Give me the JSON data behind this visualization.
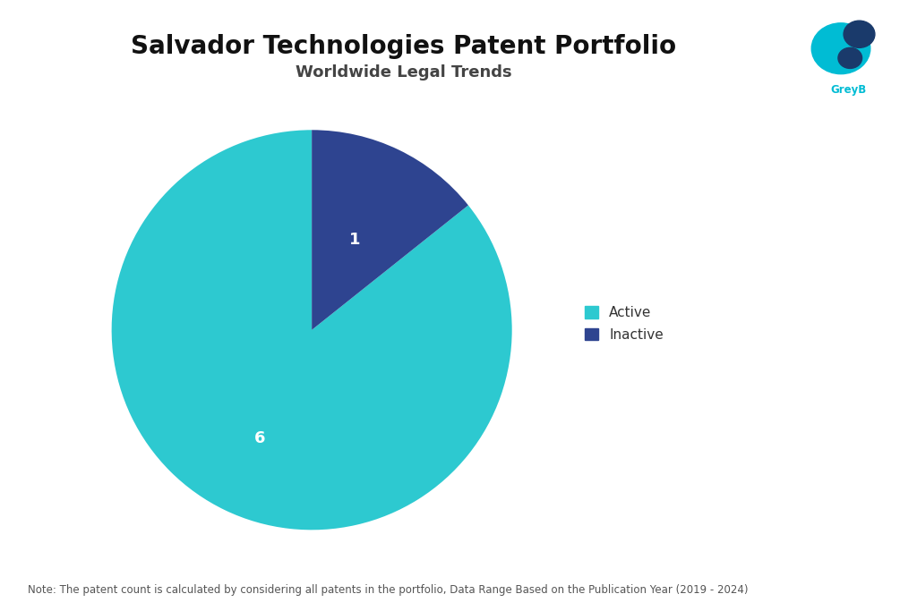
{
  "title": "Salvador Technologies Patent Portfolio",
  "subtitle": "Worldwide Legal Trends",
  "values": [
    6,
    1
  ],
  "labels": [
    "Active",
    "Inactive"
  ],
  "colors": [
    "#2DC9D0",
    "#2E4490"
  ],
  "autopct_values": [
    "6",
    "1"
  ],
  "legend_labels": [
    "Active",
    "Inactive"
  ],
  "note": "Note: The patent count is calculated by considering all patents in the portfolio, Data Range Based on the Publication Year (2019 - 2024)",
  "background_color": "#ffffff",
  "title_fontsize": 20,
  "subtitle_fontsize": 13,
  "note_fontsize": 8.5,
  "legend_fontsize": 11,
  "autopct_fontsize": 13,
  "startangle": 90
}
